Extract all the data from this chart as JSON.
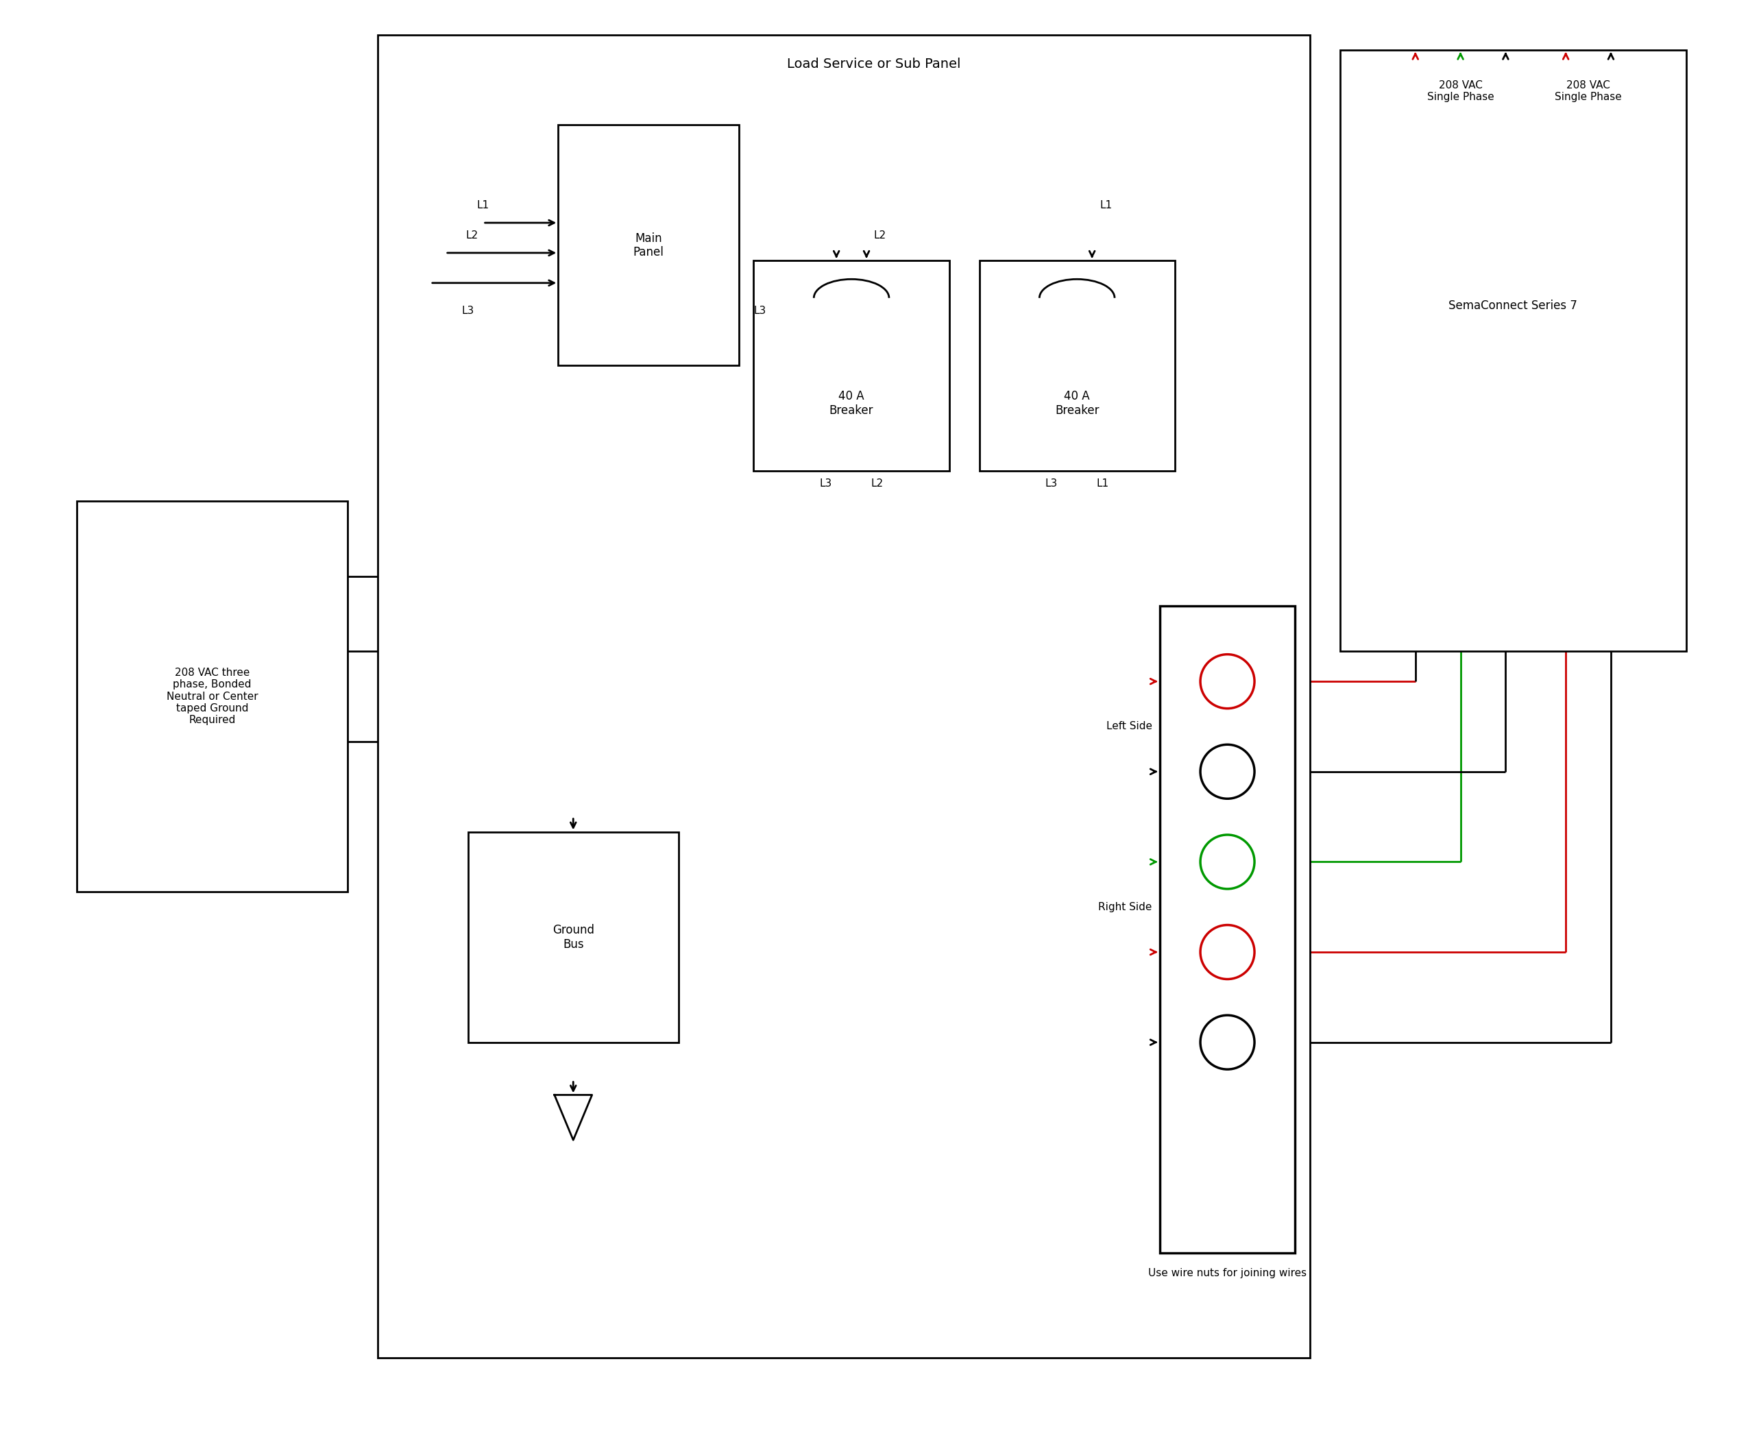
{
  "bg_color": "#ffffff",
  "line_color": "#000000",
  "red_color": "#cc0000",
  "green_color": "#009900",
  "fig_width": 25.5,
  "fig_height": 20.98,
  "title": "Load Service or Sub Panel",
  "sema_title": "SemaConnect Series 7",
  "source_label": "208 VAC three\nphase, Bonded\nNeutral or Center\ntaped Ground\nRequired",
  "ground_label": "Ground\nBus",
  "left_sp_label": "208 VAC\nSingle Phase",
  "right_sp_label": "208 VAC\nSingle Phase",
  "left_side_label": "Left Side",
  "right_side_label": "Right Side",
  "wire_nuts_label": "Use wire nuts for joining wires",
  "main_panel_label": "Main\nPanel",
  "breaker1_label": "40 A\nBreaker",
  "breaker2_label": "40 A\nBreaker",
  "lw": 2.0,
  "fontsize_main": 14,
  "fontsize_label": 12,
  "fontsize_small": 11
}
